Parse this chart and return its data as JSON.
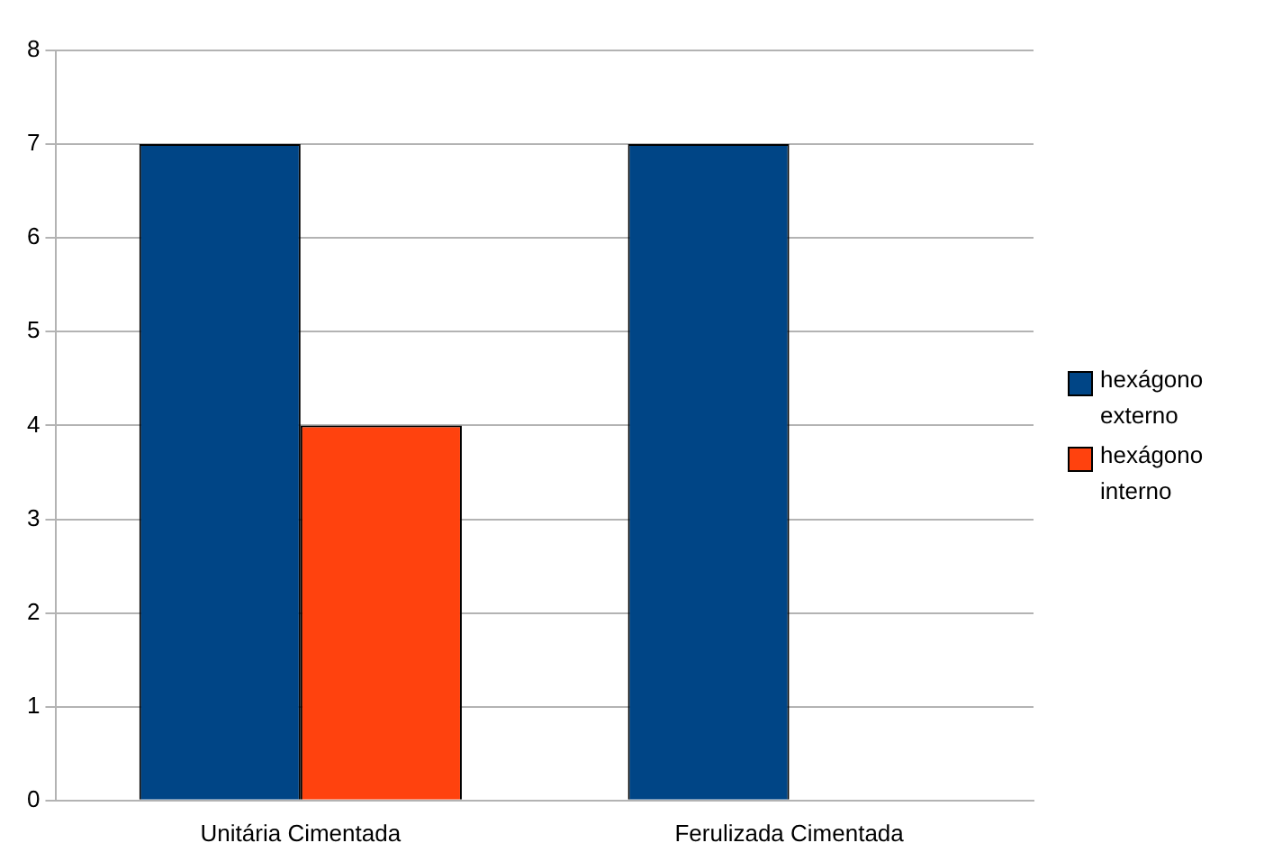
{
  "chart_data": {
    "type": "bar",
    "categories": [
      "Unitária Cimentada",
      "Ferulizada Cimentada"
    ],
    "series": [
      {
        "name": "hexágono externo",
        "color": "#004586",
        "values": [
          7,
          7
        ]
      },
      {
        "name": "hexágono interno",
        "color": "#ff420e",
        "values": [
          4,
          null
        ]
      }
    ],
    "ylim": [
      0,
      8
    ],
    "yticks": [
      0,
      1,
      2,
      3,
      4,
      5,
      6,
      7,
      8
    ],
    "grid": "y",
    "legend": "right"
  }
}
